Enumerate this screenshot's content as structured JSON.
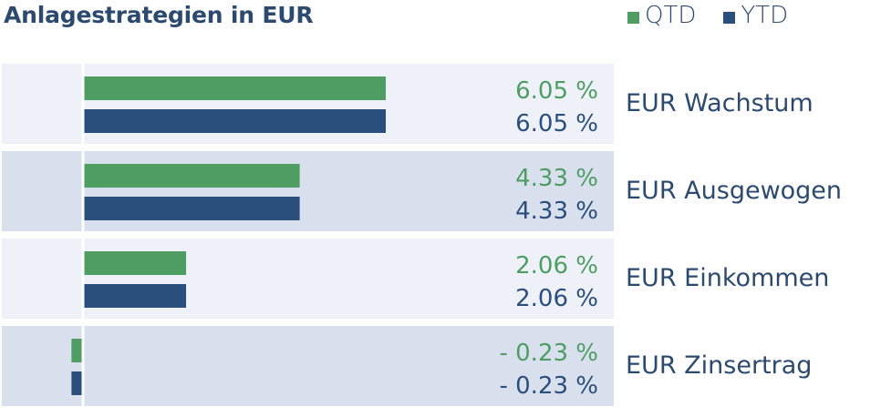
{
  "title": "Anlagestrategien in EUR",
  "legend": [
    {
      "label": "QTD",
      "color": "#4e9e64"
    },
    {
      "label": "YTD",
      "color": "#2b4f7d"
    }
  ],
  "colors": {
    "qtd": "#4e9e64",
    "ytd": "#2b4f7d",
    "row_light": "#eef2f8",
    "row_dark": "#d9e0ed",
    "text": "#2c4a70"
  },
  "chart_data": {
    "type": "bar",
    "orientation": "horizontal",
    "title": "Anlagestrategien in EUR",
    "categories": [
      "EUR Wachstum",
      "EUR Ausgewogen",
      "EUR Einkommen",
      "EUR Zinsertrag"
    ],
    "series": [
      {
        "name": "QTD",
        "values": [
          6.05,
          4.33,
          2.06,
          -0.23
        ],
        "labels": [
          "6.05 %",
          "4.33 %",
          "2.06 %",
          "- 0.23 %"
        ]
      },
      {
        "name": "YTD",
        "values": [
          6.05,
          4.33,
          2.06,
          -0.23
        ],
        "labels": [
          "6.05 %",
          "4.33 %",
          "2.06 %",
          "- 0.23 %"
        ]
      }
    ],
    "xlim": [
      -1.5,
      6.5
    ],
    "legend_position": "top-right",
    "grid": false
  }
}
